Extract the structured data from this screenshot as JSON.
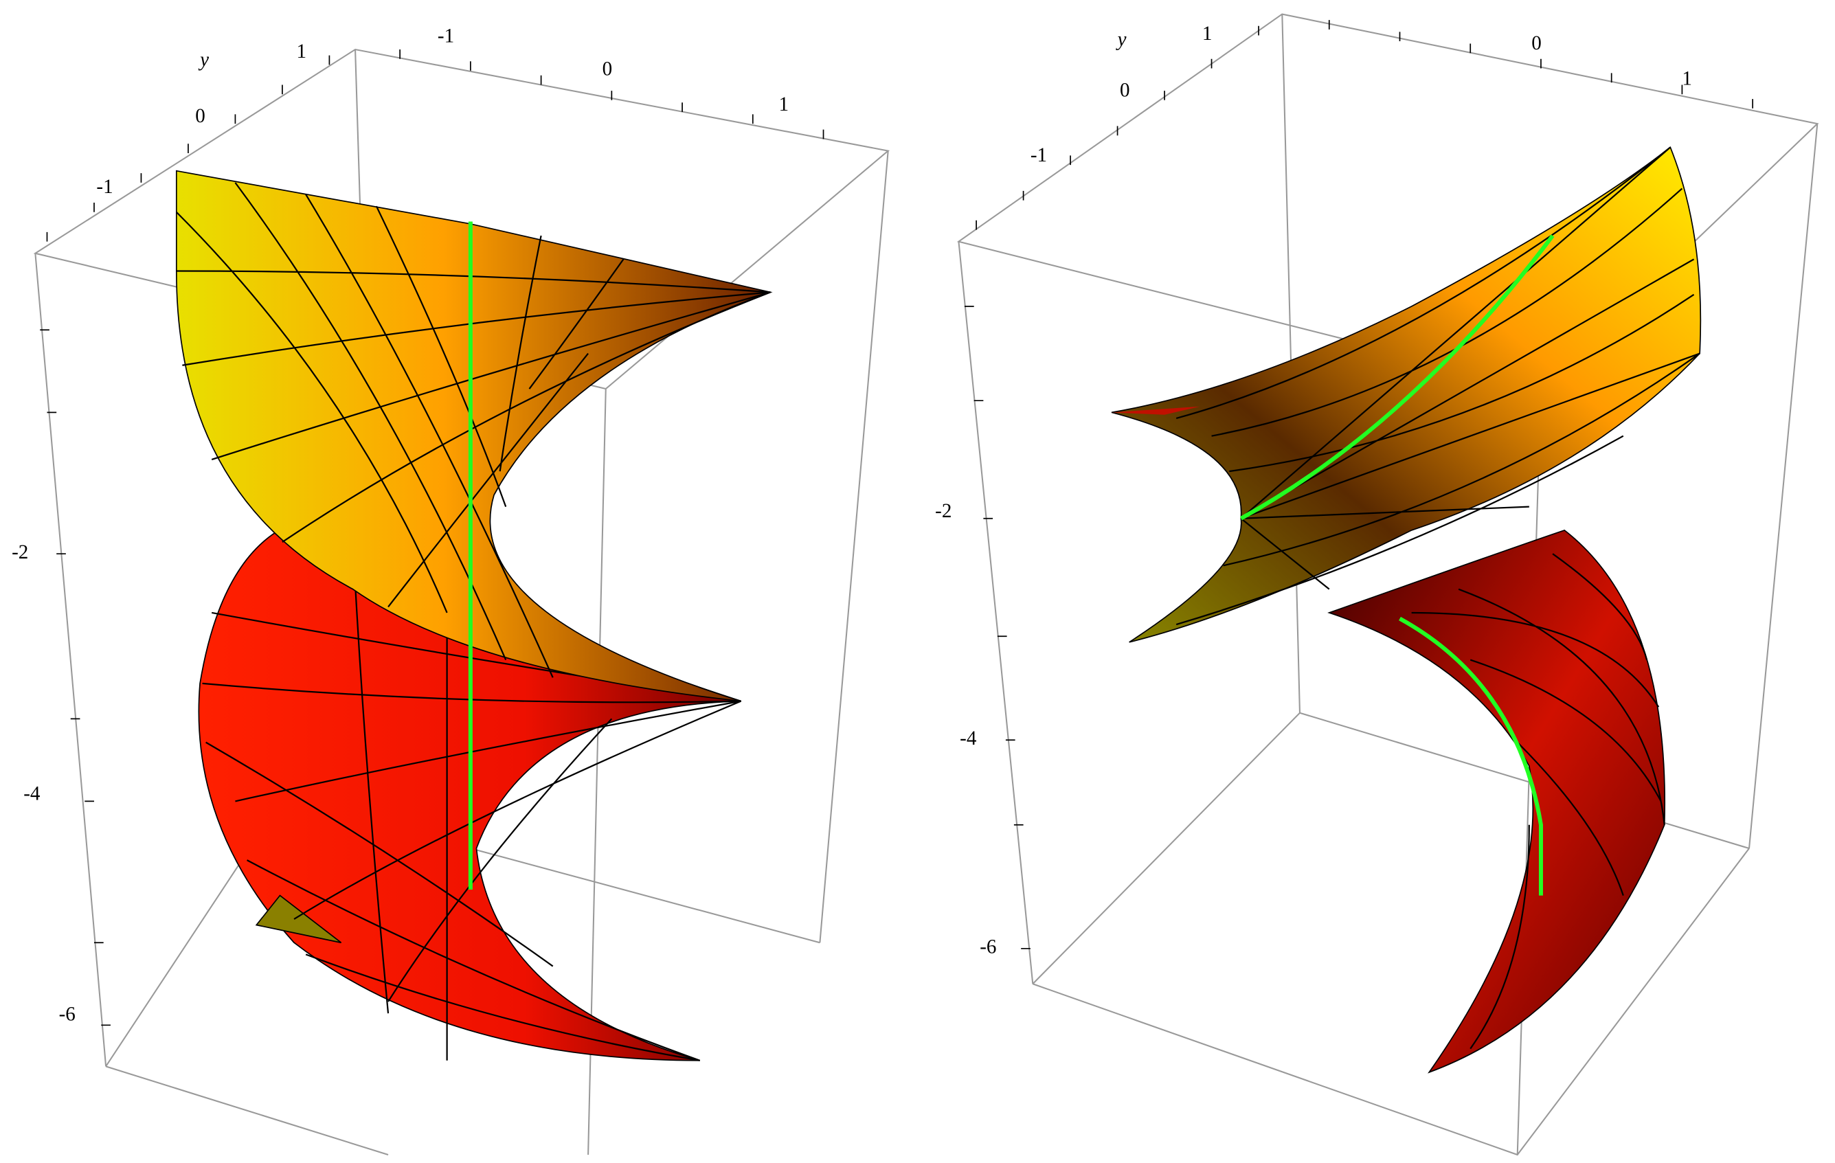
{
  "panels": [
    {
      "y_axis_label": "y",
      "y_ticks": [
        "1",
        "0",
        "-1"
      ],
      "x_ticks": [
        "-1",
        "0",
        "1"
      ],
      "z_ticks": [
        "-2",
        "-4",
        "-6"
      ]
    },
    {
      "y_axis_label": "y",
      "y_ticks": [
        "1",
        "0",
        "-1"
      ],
      "x_ticks": [
        "0",
        "1"
      ],
      "z_ticks": [
        "-2",
        "-4",
        "-6"
      ]
    }
  ]
}
